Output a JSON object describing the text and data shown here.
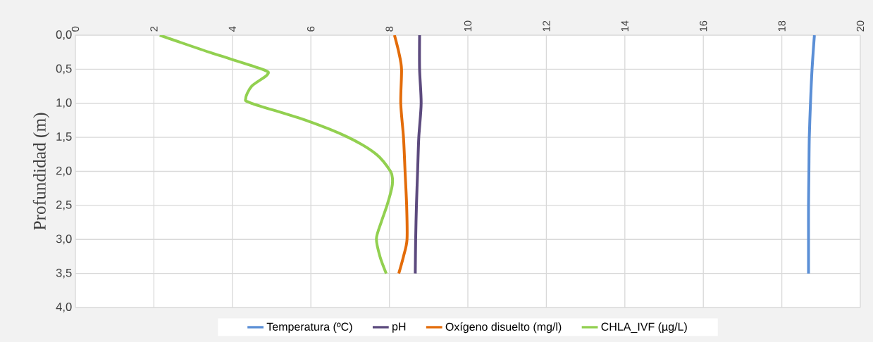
{
  "chart_data": {
    "type": "line",
    "orientation": "horizontal",
    "ylabel": "Profundidad (m)",
    "xlim": [
      0,
      20
    ],
    "xticks": [
      0,
      2,
      4,
      6,
      8,
      10,
      12,
      14,
      16,
      18,
      20
    ],
    "ylim": [
      4,
      0
    ],
    "yticks": [
      {
        "value": 0,
        "label": "0,0"
      },
      {
        "value": 0.5,
        "label": "0,5"
      },
      {
        "value": 1,
        "label": "1,0"
      },
      {
        "value": 1.5,
        "label": "1,5"
      },
      {
        "value": 2,
        "label": "2,0"
      },
      {
        "value": 2.5,
        "label": "2,5"
      },
      {
        "value": 3,
        "label": "3,0"
      },
      {
        "value": 3.5,
        "label": "3,5"
      },
      {
        "value": 4,
        "label": "4,0"
      }
    ],
    "grid": true,
    "legend": "bottom",
    "marker": "none",
    "line_style": "solid",
    "series": [
      {
        "name": "Temperatura (ºC)",
        "color": "#5b8fd6",
        "x": [
          0,
          0.5,
          1,
          1.5,
          2,
          2.5,
          3,
          3.5
        ],
        "values": [
          18.83,
          18.77,
          18.73,
          18.7,
          18.69,
          18.68,
          18.68,
          18.68
        ]
      },
      {
        "name": "pH",
        "color": "#5c4a7e",
        "x": [
          0,
          0.5,
          1,
          1.5,
          2,
          2.5,
          3,
          3.5
        ],
        "values": [
          8.77,
          8.77,
          8.81,
          8.75,
          8.72,
          8.69,
          8.67,
          8.66
        ]
      },
      {
        "name": "Oxígeno disuelto (mg/l)",
        "color": "#e36c0a",
        "x": [
          0,
          0.25,
          0.5,
          1,
          1.5,
          2,
          2.5,
          3,
          3.25,
          3.5
        ],
        "values": [
          8.13,
          8.24,
          8.31,
          8.29,
          8.36,
          8.4,
          8.44,
          8.45,
          8.36,
          8.24
        ]
      },
      {
        "name": "CHLA_IVF (µg/L)",
        "color": "#92d050",
        "x": [
          0,
          0.25,
          0.5,
          0.58,
          0.75,
          0.93,
          1,
          1.25,
          1.5,
          1.75,
          2,
          2.12,
          2.25,
          2.5,
          2.75,
          2.99,
          3.25,
          3.5
        ],
        "values": [
          2.15,
          3.41,
          4.76,
          4.89,
          4.49,
          4.34,
          4.49,
          5.87,
          6.95,
          7.67,
          8.03,
          8.08,
          8.06,
          7.94,
          7.79,
          7.67,
          7.76,
          7.92
        ]
      }
    ]
  }
}
